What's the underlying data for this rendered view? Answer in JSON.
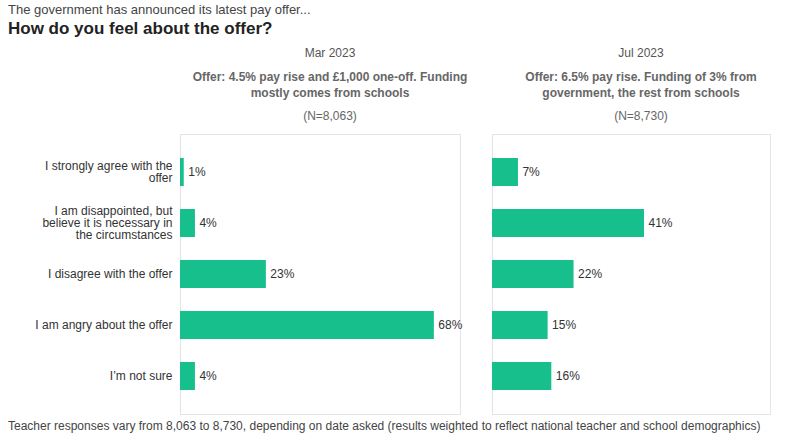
{
  "header": {
    "kicker": "The government has announced its latest pay offer...",
    "title": "How do you feel about the offer?"
  },
  "chart_data": [
    {
      "type": "bar",
      "orientation": "horizontal",
      "title": "Mar 2023",
      "subtitle": "Offer: 4.5% pay rise and £1,000 one-off. Funding mostly comes from schools",
      "sample_size": "(N=8,063)",
      "categories": [
        "I strongly agree with the offer",
        "I am disappointed, but believe it is necessary in the circumstances",
        "I disagree with the offer",
        "I am angry about the offer",
        "I’m not sure"
      ],
      "values": [
        1,
        4,
        23,
        68,
        4
      ],
      "value_labels": [
        "1%",
        "4%",
        "23%",
        "68%",
        "4%"
      ],
      "data_labels": true,
      "tick_labels": "y",
      "color": "#17bf8c",
      "xlim": [
        0,
        75
      ]
    },
    {
      "type": "bar",
      "orientation": "horizontal",
      "title": "Jul 2023",
      "subtitle": "Offer: 6.5% pay rise. Funding of 3% from government, the rest from schools",
      "sample_size": "(N=8,730)",
      "categories": [
        "I strongly agree with the offer",
        "I am disappointed, but believe it is necessary in the circumstances",
        "I disagree with the offer",
        "I am angry about the offer",
        "I’m not sure"
      ],
      "values": [
        7,
        41,
        22,
        15,
        16
      ],
      "value_labels": [
        "7%",
        "41%",
        "22%",
        "15%",
        "16%"
      ],
      "data_labels": true,
      "tick_labels": false,
      "color": "#17bf8c",
      "xlim": [
        0,
        75
      ]
    }
  ],
  "footnote": "Teacher responses vary from 8,063 to 8,730, depending on date asked (results weighted to reflect national teacher and school demographics)"
}
